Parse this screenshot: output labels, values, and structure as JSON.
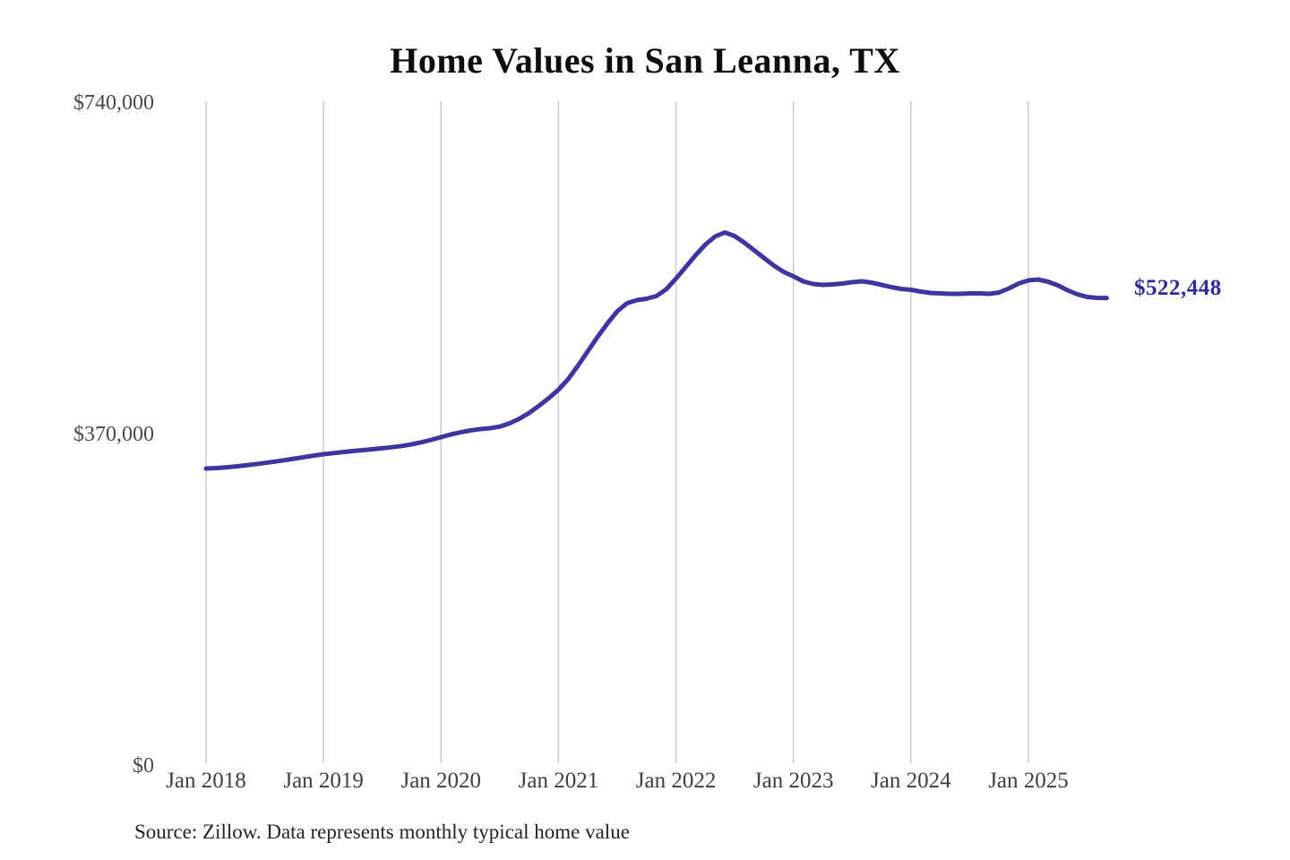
{
  "title": "Home Values in San Leanna, TX",
  "source_note": "Source: Zillow. Data represents monthly typical home value",
  "end_label": "$522,448",
  "colors": {
    "line": "#3d35a0",
    "end_label": "#2f2aa0",
    "gridline": "#cccccc",
    "title_text": "#0d0d0d",
    "axis_text": "#4a4a4a",
    "background": "#ffffff"
  },
  "chart_data": {
    "type": "line",
    "title": "Home Values in San Leanna, TX",
    "xlabel": "",
    "ylabel": "",
    "ylim": [
      0,
      740000
    ],
    "grid": "vertical-only",
    "legend": "none",
    "y_ticks": [
      {
        "label": "$740,000",
        "value": 740000
      },
      {
        "label": "$370,000",
        "value": 370000
      },
      {
        "label": "$0",
        "value": 0
      }
    ],
    "x_ticks": [
      {
        "label": "Jan 2018",
        "month_index": 0
      },
      {
        "label": "Jan 2019",
        "month_index": 12
      },
      {
        "label": "Jan 2020",
        "month_index": 24
      },
      {
        "label": "Jan 2021",
        "month_index": 36
      },
      {
        "label": "Jan 2022",
        "month_index": 48
      },
      {
        "label": "Jan 2023",
        "month_index": 60
      },
      {
        "label": "Jan 2024",
        "month_index": 72
      },
      {
        "label": "Jan 2025",
        "month_index": 84
      }
    ],
    "series": [
      {
        "name": "Monthly typical home value",
        "x_start": "2018-01",
        "x_end": "2025-09",
        "x_freq": "monthly",
        "final_value": 522448,
        "values": [
          332000,
          332500,
          333300,
          334300,
          335500,
          336800,
          338200,
          339700,
          341300,
          343000,
          344700,
          346400,
          348000,
          349200,
          350400,
          351500,
          352500,
          353500,
          354600,
          355800,
          357200,
          359000,
          361300,
          364000,
          367000,
          370000,
          372400,
          374500,
          376000,
          377000,
          378800,
          382500,
          387500,
          394000,
          402000,
          410500,
          420000,
          432000,
          447000,
          463000,
          479000,
          494000,
          507500,
          516500,
          520000,
          521500,
          524500,
          532000,
          544000,
          557000,
          570000,
          582000,
          591000,
          595500,
          591500,
          584000,
          575500,
          567000,
          558500,
          551500,
          546500,
          541000,
          538000,
          537000,
          537500,
          538500,
          540000,
          541000,
          539500,
          537000,
          534500,
          532500,
          531500,
          529500,
          528000,
          527500,
          527000,
          527000,
          527500,
          527500,
          527000,
          528500,
          533000,
          538500,
          542000,
          543000,
          540500,
          536500,
          531000,
          526500,
          523500,
          522500,
          522448
        ]
      }
    ]
  }
}
